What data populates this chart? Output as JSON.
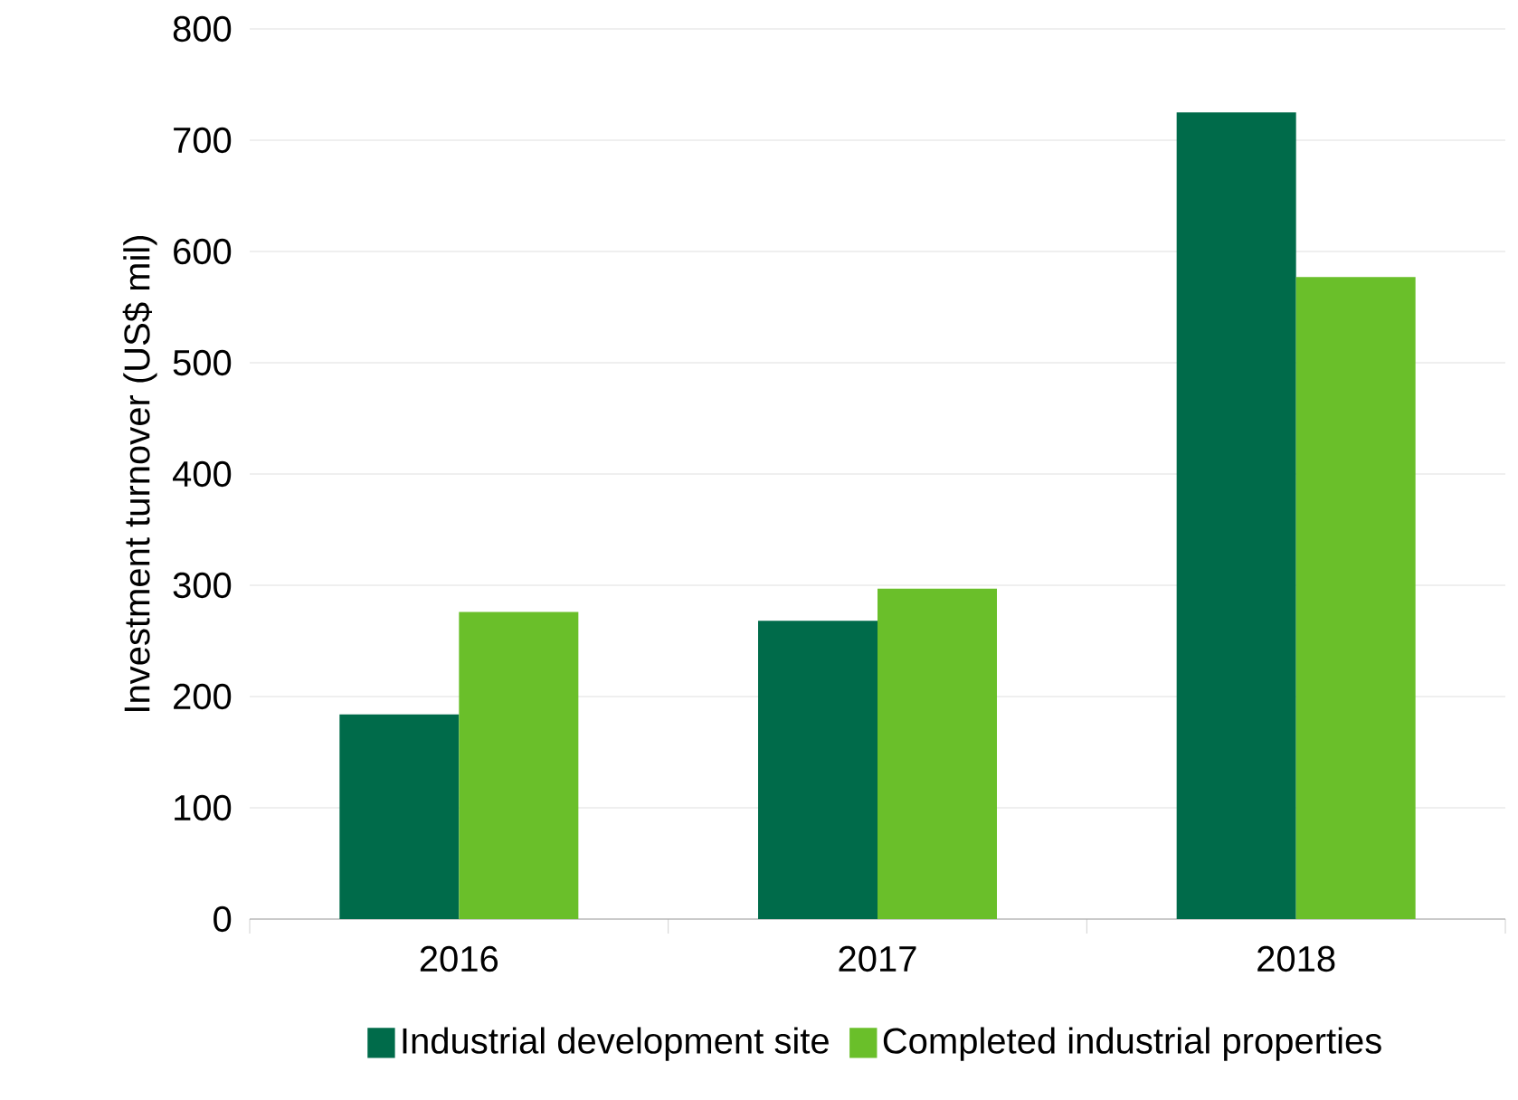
{
  "chart_data": {
    "type": "bar",
    "ylabel": "Investment turnover (US$ mil)",
    "categories": [
      "2016",
      "2017",
      "2018"
    ],
    "series": [
      {
        "name": "Industrial development site",
        "color": "#006b4a",
        "values": [
          184,
          268,
          725
        ]
      },
      {
        "name": "Completed industrial properties",
        "color": "#6abf2a",
        "values": [
          276,
          297,
          577
        ]
      }
    ],
    "ylim": [
      0,
      800
    ],
    "yticks": [
      0,
      100,
      200,
      300,
      400,
      500,
      600,
      700,
      800
    ],
    "grid": "y",
    "legend": "bottom"
  }
}
